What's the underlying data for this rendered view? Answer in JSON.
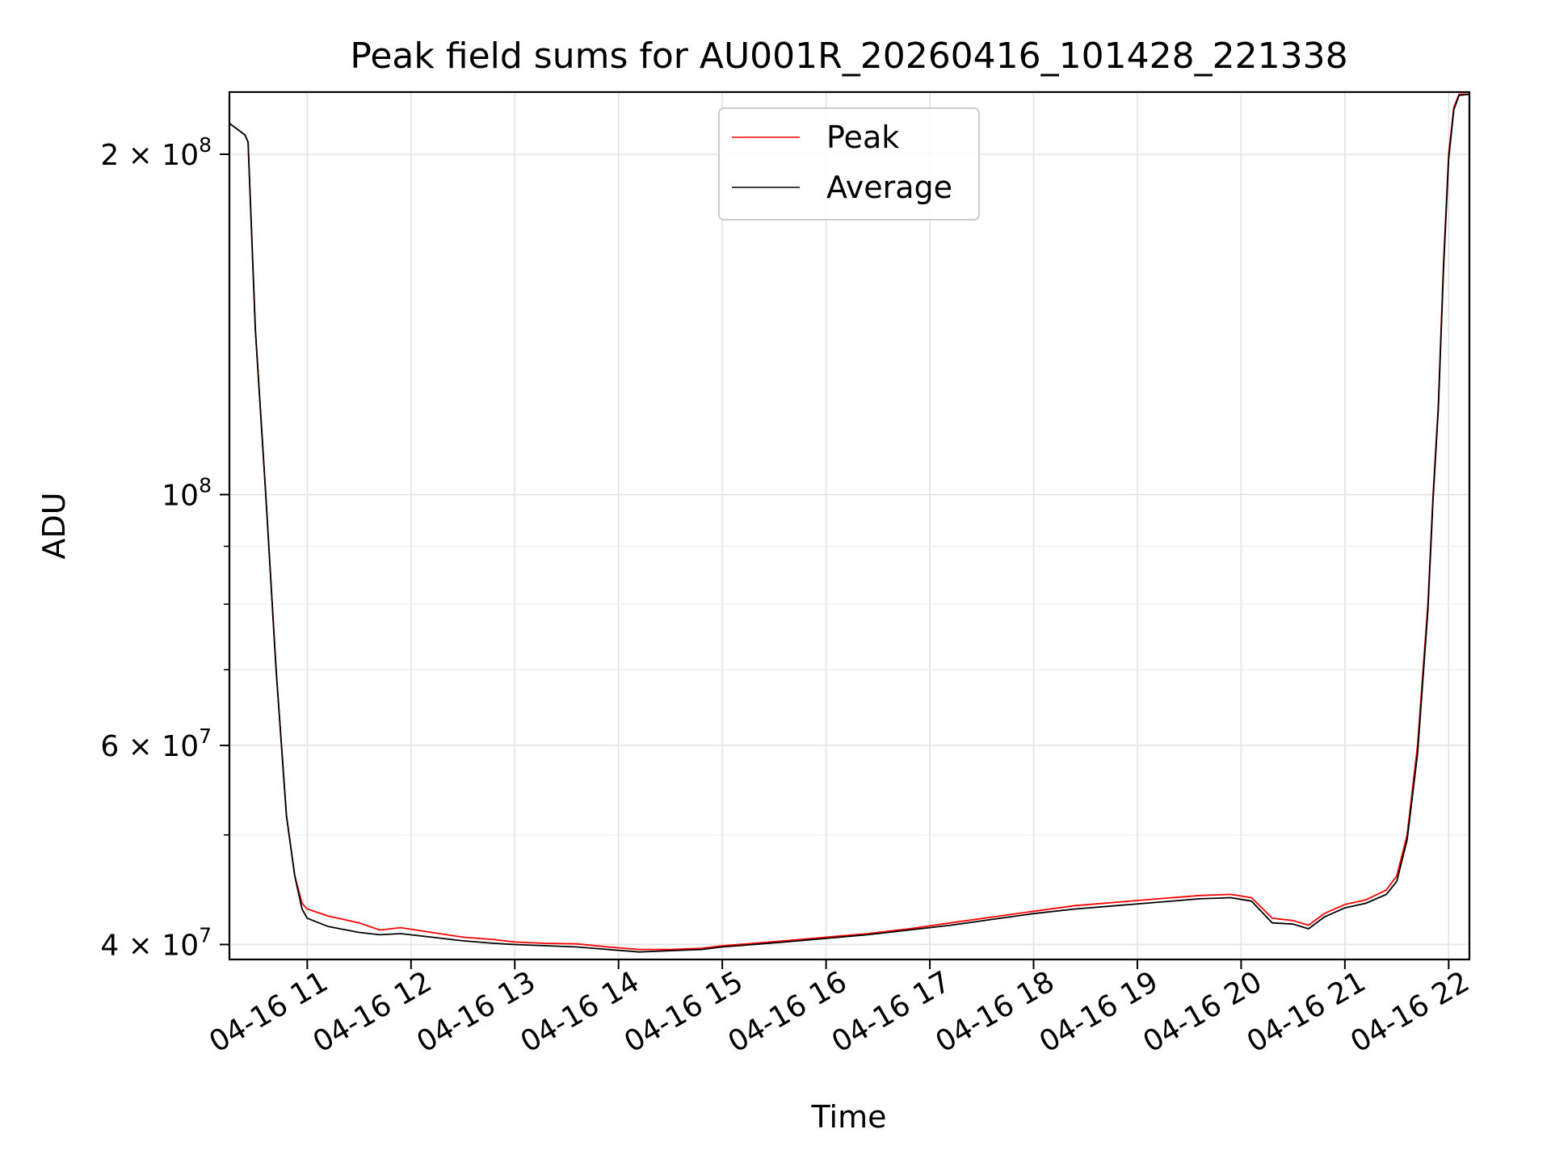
{
  "chart_data": {
    "type": "line",
    "title": "Peak field sums for AU001R_20260416_101428_221338",
    "xlabel": "Time",
    "ylabel": "ADU",
    "yscale": "log",
    "ylim": [
      38800000,
      227000000
    ],
    "xlim": [
      10.25,
      22.2
    ],
    "grid": true,
    "legend_position": "top-center",
    "x_ticks": [
      {
        "value": 11,
        "label": "04-16 11"
      },
      {
        "value": 12,
        "label": "04-16 12"
      },
      {
        "value": 13,
        "label": "04-16 13"
      },
      {
        "value": 14,
        "label": "04-16 14"
      },
      {
        "value": 15,
        "label": "04-16 15"
      },
      {
        "value": 16,
        "label": "04-16 16"
      },
      {
        "value": 17,
        "label": "04-16 17"
      },
      {
        "value": 18,
        "label": "04-16 18"
      },
      {
        "value": 19,
        "label": "04-16 19"
      },
      {
        "value": 20,
        "label": "04-16 20"
      },
      {
        "value": 21,
        "label": "04-16 21"
      },
      {
        "value": 22,
        "label": "04-16 22"
      }
    ],
    "y_ticks": [
      {
        "value": 40000000,
        "base": "4 × 10",
        "exp": "7"
      },
      {
        "value": 60000000,
        "base": "6 × 10",
        "exp": "7"
      },
      {
        "value": 100000000,
        "base": "10",
        "exp": "8"
      },
      {
        "value": 200000000,
        "base": "2 × 10",
        "exp": "8"
      }
    ],
    "y_minor_ticks": [
      50000000,
      70000000,
      80000000,
      90000000
    ],
    "series": [
      {
        "name": "Peak",
        "color": "#ff0000",
        "x": [
          10.24,
          10.4,
          10.43,
          10.5,
          10.6,
          10.7,
          10.8,
          10.88,
          10.95,
          11.0,
          11.2,
          11.5,
          11.7,
          11.9,
          12.2,
          12.5,
          12.8,
          13.0,
          13.3,
          13.6,
          13.9,
          14.2,
          14.5,
          14.8,
          15.0,
          15.3,
          15.6,
          16.0,
          16.4,
          16.8,
          17.2,
          17.6,
          18.0,
          18.4,
          18.8,
          19.2,
          19.6,
          19.9,
          20.1,
          20.3,
          20.5,
          20.65,
          20.8,
          21.0,
          21.2,
          21.4,
          21.5,
          21.6,
          21.7,
          21.8,
          21.85,
          21.9,
          21.95,
          22.0,
          22.05,
          22.1,
          22.2
        ],
        "y": [
          213000000,
          208000000,
          205000000,
          140000000,
          100000000,
          70000000,
          52000000,
          46000000,
          43500000,
          43000000,
          42400000,
          41800000,
          41200000,
          41400000,
          41000000,
          40600000,
          40400000,
          40200000,
          40100000,
          40050000,
          39800000,
          39600000,
          39600000,
          39700000,
          39900000,
          40100000,
          40300000,
          40600000,
          40900000,
          41300000,
          41800000,
          42300000,
          42800000,
          43300000,
          43600000,
          43900000,
          44200000,
          44300000,
          44000000,
          42200000,
          42000000,
          41600000,
          42600000,
          43400000,
          43800000,
          44700000,
          46000000,
          50000000,
          60000000,
          80000000,
          100000000,
          120000000,
          160000000,
          200000000,
          220000000,
          226000000,
          226000000
        ]
      },
      {
        "name": "Average",
        "color": "#000000",
        "x": [
          10.24,
          10.4,
          10.43,
          10.5,
          10.6,
          10.7,
          10.8,
          10.88,
          10.95,
          11.0,
          11.2,
          11.5,
          11.7,
          11.9,
          12.2,
          12.5,
          12.8,
          13.0,
          13.3,
          13.6,
          13.9,
          14.2,
          14.5,
          14.8,
          15.0,
          15.3,
          15.6,
          16.0,
          16.4,
          16.8,
          17.2,
          17.6,
          18.0,
          18.4,
          18.8,
          19.2,
          19.6,
          19.9,
          20.1,
          20.3,
          20.5,
          20.65,
          20.8,
          21.0,
          21.2,
          21.4,
          21.5,
          21.6,
          21.7,
          21.8,
          21.85,
          21.9,
          21.95,
          22.0,
          22.05,
          22.1,
          22.2
        ],
        "y": [
          213000000,
          208000000,
          205000000,
          140000000,
          100000000,
          70000000,
          52000000,
          46000000,
          43000000,
          42200000,
          41500000,
          41000000,
          40800000,
          40900000,
          40600000,
          40300000,
          40100000,
          40000000,
          39900000,
          39800000,
          39600000,
          39400000,
          39500000,
          39600000,
          39800000,
          40000000,
          40200000,
          40500000,
          40800000,
          41200000,
          41600000,
          42100000,
          42600000,
          43000000,
          43300000,
          43600000,
          43900000,
          44000000,
          43700000,
          41800000,
          41700000,
          41300000,
          42300000,
          43100000,
          43500000,
          44300000,
          45500000,
          49500000,
          59000000,
          79000000,
          99000000,
          119000000,
          158000000,
          198000000,
          219000000,
          225500000,
          226000000
        ]
      }
    ]
  }
}
